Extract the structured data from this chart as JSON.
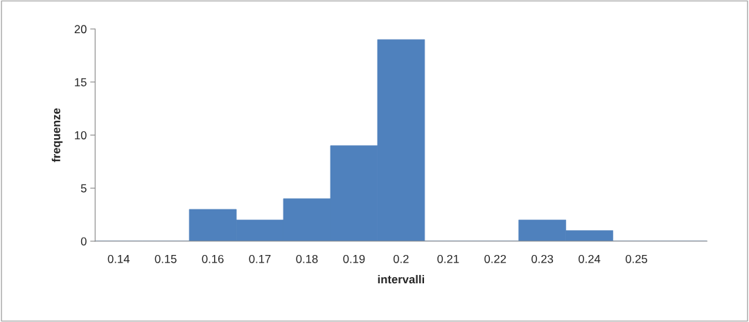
{
  "chart_data": {
    "type": "bar",
    "xlabel": "intervalli",
    "ylabel": "frequenze",
    "categories": [
      "0.14",
      "0.15",
      "0.16",
      "0.17",
      "0.18",
      "0.19",
      "0.2",
      "0.21",
      "0.22",
      "0.23",
      "0.24",
      "0.25",
      null
    ],
    "values": [
      0,
      0,
      3,
      2,
      4,
      9,
      19,
      0,
      0,
      2,
      1,
      0,
      0
    ],
    "color": "#4f81bd",
    "ylim": [
      0,
      20
    ],
    "yticks": [
      0,
      5,
      10,
      15,
      20
    ],
    "grid": false,
    "legend": false
  }
}
